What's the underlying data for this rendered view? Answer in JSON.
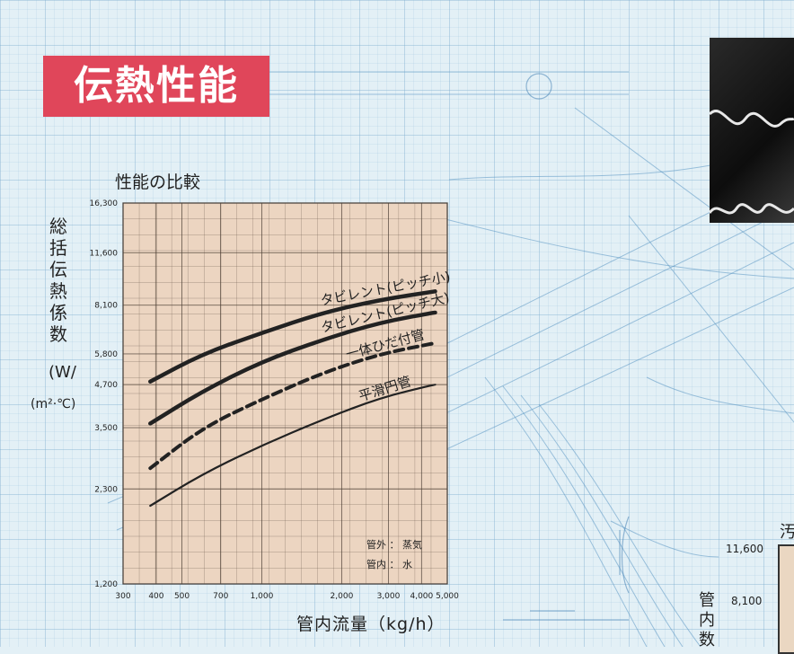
{
  "banner": {
    "title": "伝熱性能"
  },
  "chart_data": {
    "type": "line",
    "title": "性能の比較",
    "ylabel_chars": [
      "総",
      "括",
      "伝",
      "熱",
      "係",
      "数"
    ],
    "yunit_top": "(W/",
    "yunit_bottom": "(m²·℃)",
    "xlabel": "管内流量（kg/h）",
    "x_scale": "log",
    "y_scale": "log",
    "xlim": [
      300,
      5000
    ],
    "ylim": [
      1200,
      16300
    ],
    "x_ticks": [
      {
        "value": 300,
        "label": "300"
      },
      {
        "value": 400,
        "label": "400"
      },
      {
        "value": 500,
        "label": "500"
      },
      {
        "value": 700,
        "label": "700"
      },
      {
        "value": 1000,
        "label": "1,000"
      },
      {
        "value": 2000,
        "label": "2,000"
      },
      {
        "value": 3000,
        "label": "3,000"
      },
      {
        "value": 4000,
        "label": "4,000"
      },
      {
        "value": 5000,
        "label": "5,000"
      }
    ],
    "y_ticks": [
      {
        "value": 1200,
        "label": "1,200"
      },
      {
        "value": 2300,
        "label": "2,300"
      },
      {
        "value": 3500,
        "label": "3,500"
      },
      {
        "value": 4700,
        "label": "4,700"
      },
      {
        "value": 5800,
        "label": "5,800"
      },
      {
        "value": 8100,
        "label": "8,100"
      },
      {
        "value": 11600,
        "label": "11,600"
      },
      {
        "value": 16300,
        "label": "16,300"
      }
    ],
    "grid": true,
    "series": [
      {
        "name": "タビレント(ピッチ小)",
        "style": "thick",
        "color": "#222222",
        "x": [
          380,
          600,
          1000,
          1700,
          2800,
          4500
        ],
        "y": [
          4800,
          5800,
          6700,
          7700,
          8400,
          8900
        ]
      },
      {
        "name": "タビレント(ピッチ大)",
        "style": "thick",
        "color": "#222222",
        "x": [
          380,
          600,
          1000,
          1700,
          2800,
          4500
        ],
        "y": [
          3600,
          4500,
          5500,
          6400,
          7200,
          7700
        ]
      },
      {
        "name": "一体ひだ付管",
        "style": "dashed",
        "color": "#222222",
        "x": [
          380,
          600,
          1000,
          1700,
          2800,
          4500
        ],
        "y": [
          2650,
          3500,
          4250,
          5100,
          5800,
          6250
        ]
      },
      {
        "name": "平滑円管",
        "style": "thin",
        "color": "#222222",
        "x": [
          380,
          600,
          1000,
          1700,
          2800,
          4500
        ],
        "y": [
          2050,
          2550,
          3100,
          3700,
          4300,
          4700
        ]
      }
    ],
    "notes": [
      "管外 ： 蒸気",
      "管内 ： 水"
    ]
  },
  "right_chart": {
    "title_glyph": "汚",
    "ylabel_chars": [
      "管",
      "内",
      "数"
    ],
    "y_ticks": [
      "11,600",
      "8,100"
    ]
  },
  "colors": {
    "banner": "#e0465a",
    "plot_bg": "#ecd5c1",
    "background": "#e3f0f6"
  }
}
